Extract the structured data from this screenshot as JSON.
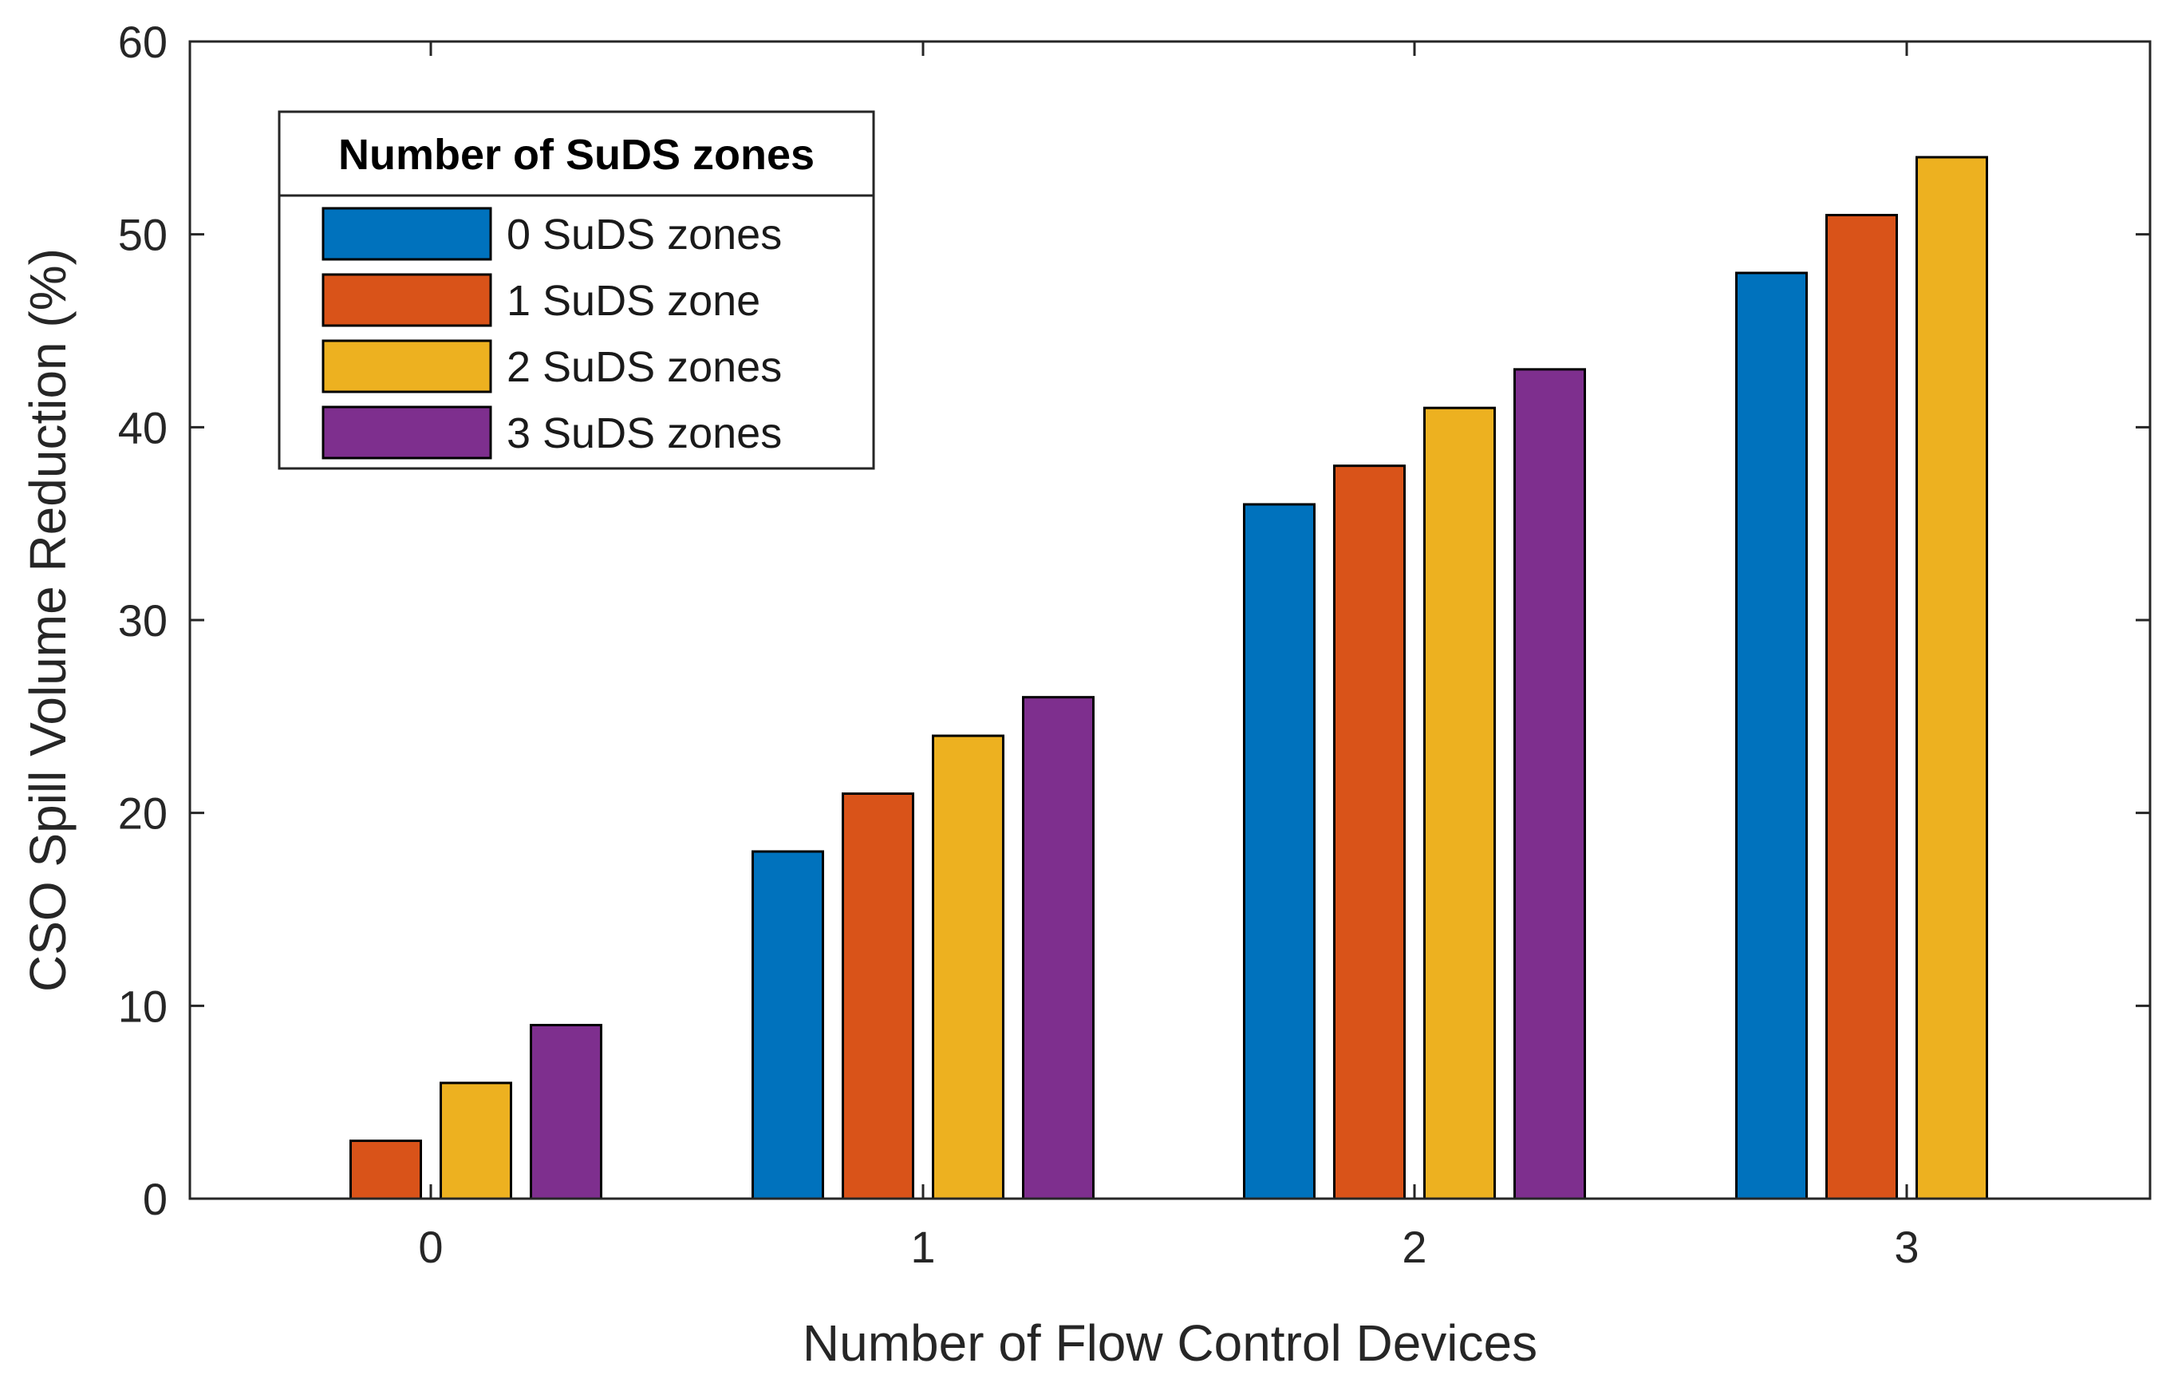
{
  "chart_data": {
    "type": "bar",
    "title": "",
    "xlabel": "Number of Flow Control Devices",
    "ylabel": "CSO Spill Volume Reduction (%)",
    "categories": [
      "0",
      "1",
      "2",
      "3"
    ],
    "ylim": [
      0,
      60
    ],
    "yticks": [
      "0",
      "10",
      "20",
      "30",
      "40",
      "50",
      "60"
    ],
    "grid": false,
    "legend": {
      "title": "Number of SuDS zones",
      "placement": "top-left"
    },
    "series": [
      {
        "name": "0 SuDS zones",
        "color": "#0072BD",
        "values": [
          0,
          18,
          36,
          48
        ]
      },
      {
        "name": "1 SuDS zone",
        "color": "#D95319",
        "values": [
          3,
          21,
          38,
          51
        ]
      },
      {
        "name": "2 SuDS zones",
        "color": "#EDB120",
        "values": [
          6,
          24,
          41,
          54
        ]
      },
      {
        "name": "3 SuDS zones",
        "color": "#7E2F8E",
        "values": [
          9,
          26,
          43,
          0
        ]
      }
    ]
  }
}
